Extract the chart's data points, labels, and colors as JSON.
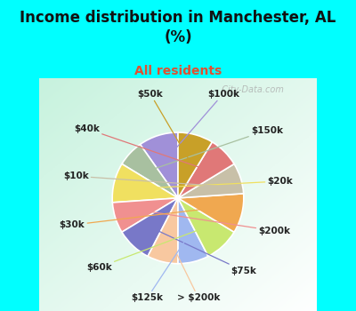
{
  "title": "Income distribution in Manchester, AL\n(%)",
  "subtitle": "All residents",
  "title_color": "#111111",
  "subtitle_color": "#e05030",
  "fig_bg": "#00FFFF",
  "chart_bg": "#d8f0e8",
  "labels": [
    "$100k",
    "$150k",
    "$20k",
    "$200k",
    "$75k",
    "> $200k",
    "$125k",
    "$60k",
    "$30k",
    "$10k",
    "$40k",
    "$50k"
  ],
  "values": [
    9,
    6,
    9,
    7,
    8,
    7,
    7,
    8,
    9,
    7,
    7,
    8
  ],
  "colors": [
    "#a090d8",
    "#a8c0a0",
    "#f0e060",
    "#f09090",
    "#7878c8",
    "#f8c8a0",
    "#a0b8f0",
    "#c8e870",
    "#f0a850",
    "#c8c0a8",
    "#e07878",
    "#c8a028"
  ],
  "watermark": "  City-Data.com"
}
